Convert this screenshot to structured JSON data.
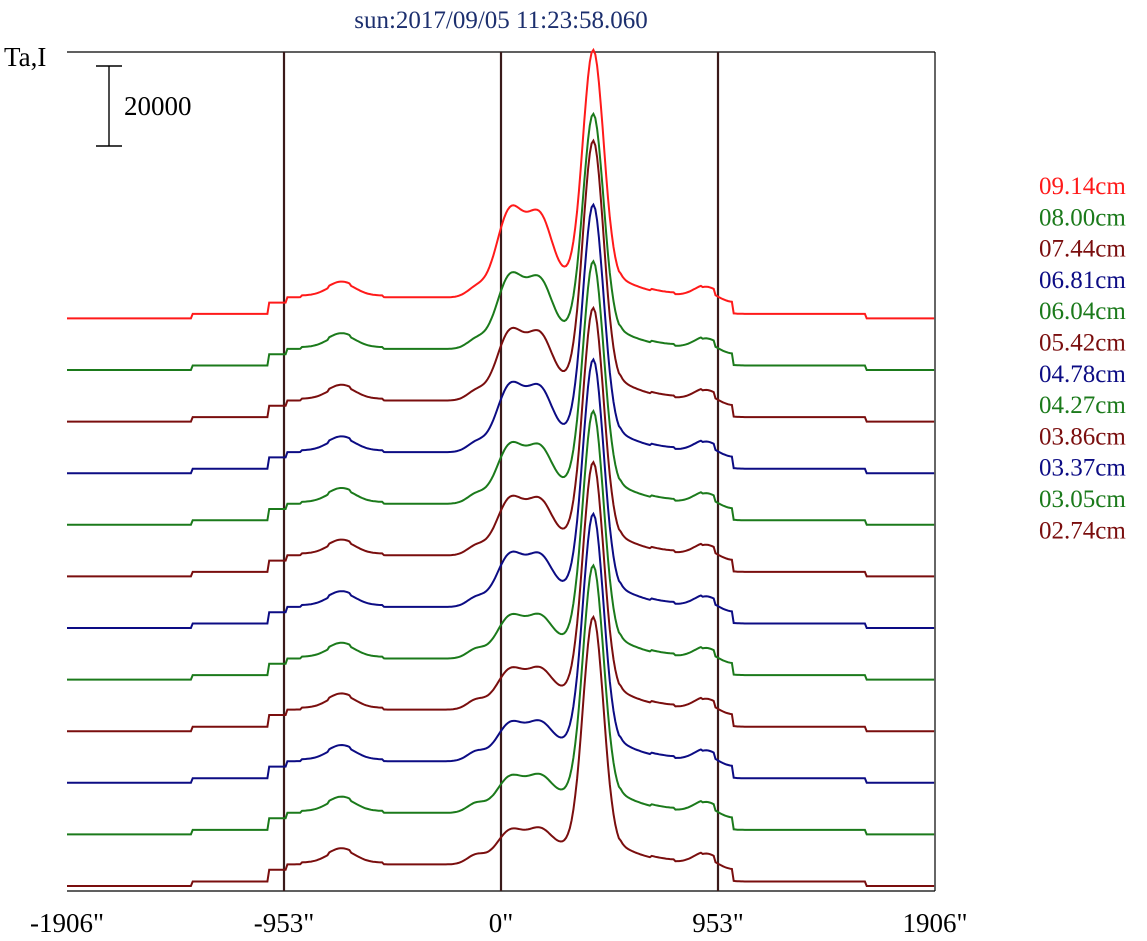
{
  "chart_data": {
    "type": "line",
    "title": "sun:2017/09/05 11:23:58.060",
    "ylabel": "Ta,I",
    "scale_bar_label": "20000",
    "scale_bar_value": 20000,
    "x_unit": "arcsec",
    "xlim": [
      -1906,
      1906
    ],
    "x_ticks": [
      {
        "value": -1906,
        "label": "-1906\""
      },
      {
        "value": -953,
        "label": "-953\""
      },
      {
        "value": 0,
        "label": "0\""
      },
      {
        "value": 953,
        "label": "953\""
      },
      {
        "value": 1906,
        "label": "1906\""
      }
    ],
    "reference_lines": [
      -953,
      0,
      953
    ],
    "grid": false,
    "legend_position": "right",
    "series": [
      {
        "name": "09.14cm",
        "color": "#ff1a1a",
        "rank": 11,
        "rise": 0.78,
        "main": 1.0,
        "sec": 0.42
      },
      {
        "name": "08.00cm",
        "color": "#1b7a1b",
        "rank": 10,
        "rise": 0.78,
        "main": 0.95,
        "sec": 0.35
      },
      {
        "name": "07.44cm",
        "color": "#7a0e0e",
        "rank": 9,
        "rise": 0.78,
        "main": 1.05,
        "sec": 0.33
      },
      {
        "name": "06.81cm",
        "color": "#0c0c84",
        "rank": 8,
        "rise": 0.78,
        "main": 1.0,
        "sec": 0.32
      },
      {
        "name": "06.04cm",
        "color": "#1b7a1b",
        "rank": 7,
        "rise": 0.78,
        "main": 0.98,
        "sec": 0.28
      },
      {
        "name": "05.42cm",
        "color": "#7a0e0e",
        "rank": 6,
        "rise": 0.78,
        "main": 1.0,
        "sec": 0.27
      },
      {
        "name": "04.78cm",
        "color": "#0c0c84",
        "rank": 5,
        "rise": 0.78,
        "main": 1.0,
        "sec": 0.25
      },
      {
        "name": "04.27cm",
        "color": "#1b7a1b",
        "rank": 4,
        "rise": 0.78,
        "main": 1.0,
        "sec": 0.2
      },
      {
        "name": "03.86cm",
        "color": "#7a0e0e",
        "rank": 3,
        "rise": 0.8,
        "main": 1.0,
        "sec": 0.19
      },
      {
        "name": "03.37cm",
        "color": "#0c0c84",
        "rank": 2,
        "rise": 0.8,
        "main": 1.0,
        "sec": 0.18
      },
      {
        "name": "03.05cm",
        "color": "#1b7a1b",
        "rank": 1,
        "rise": 0.8,
        "main": 1.0,
        "sec": 0.17
      },
      {
        "name": "02.74cm",
        "color": "#7a0e0e",
        "rank": 0,
        "rise": 0.8,
        "main": 1.0,
        "sec": 0.16
      }
    ]
  }
}
